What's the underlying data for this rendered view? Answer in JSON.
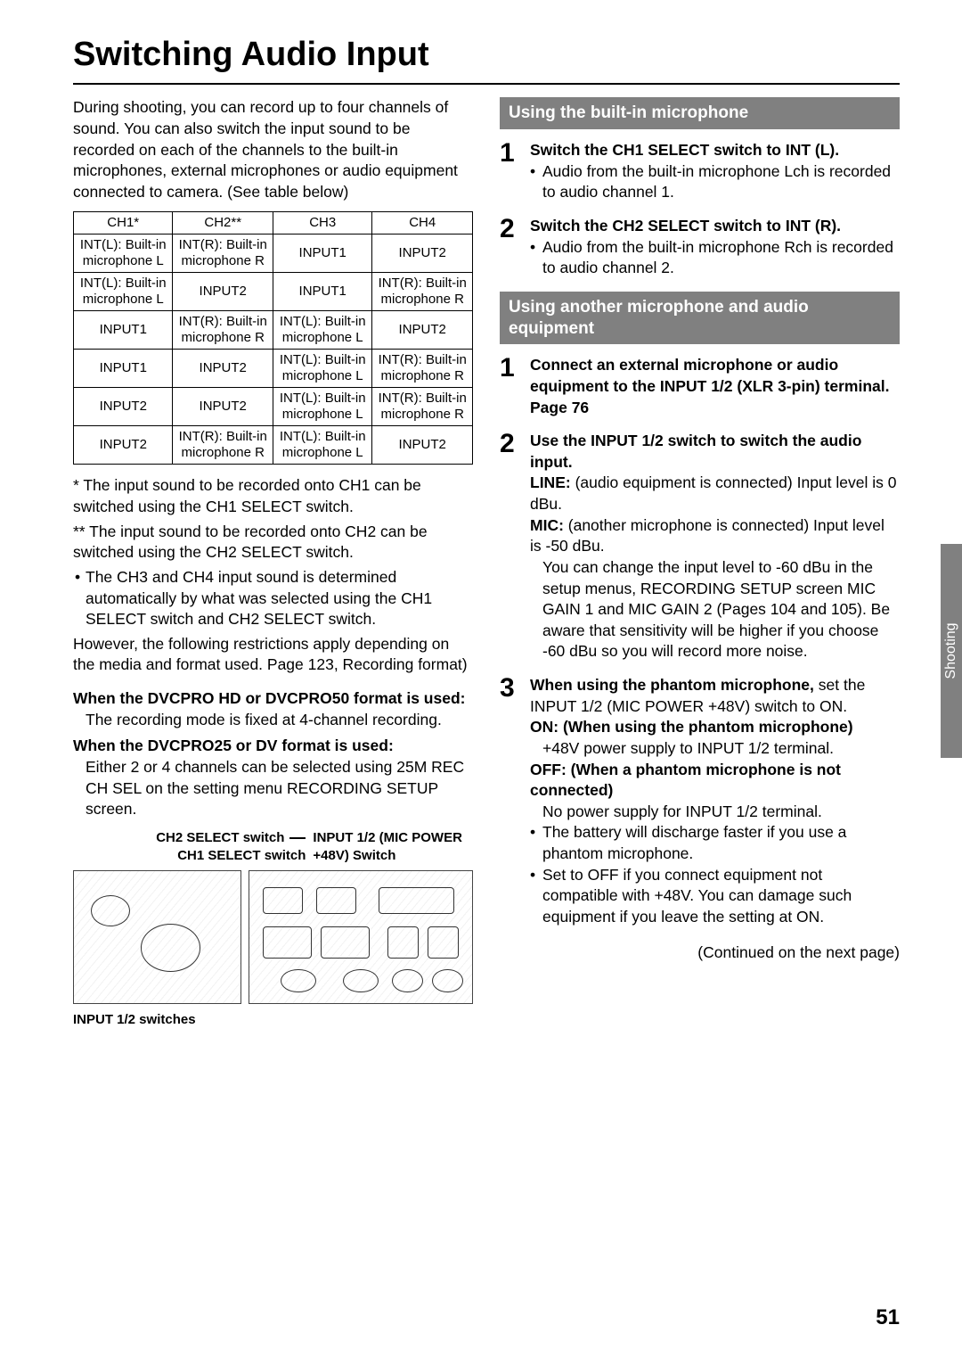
{
  "page": {
    "title": "Switching Audio Input",
    "side_tab": "Shooting",
    "page_number": "51",
    "continued": "(Continued on the next page)"
  },
  "left": {
    "intro": "During shooting, you can record up to four channels of sound. You can also switch the input sound to be recorded on each of the channels to the built-in microphones, external microphones or audio equipment connected to camera. (See table below)",
    "table": {
      "columns": [
        "CH1*",
        "CH2**",
        "CH3",
        "CH4"
      ],
      "rows": [
        [
          "INT(L): Built-in microphone L",
          "INT(R): Built-in microphone R",
          "INPUT1",
          "INPUT2"
        ],
        [
          "INT(L): Built-in microphone L",
          "INPUT2",
          "INPUT1",
          "INT(R): Built-in microphone R"
        ],
        [
          "INPUT1",
          "INT(R): Built-in microphone R",
          "INT(L): Built-in microphone L",
          "INPUT2"
        ],
        [
          "INPUT1",
          "INPUT2",
          "INT(L): Built-in microphone L",
          "INT(R): Built-in microphone R"
        ],
        [
          "INPUT2",
          "INPUT2",
          "INT(L): Built-in microphone L",
          "INT(R): Built-in microphone R"
        ],
        [
          "INPUT2",
          "INT(R): Built-in microphone R",
          "INT(L): Built-in microphone L",
          "INPUT2"
        ]
      ]
    },
    "notes": {
      "n1": "* The input sound to be recorded onto CH1 can be switched using the CH1 SELECT switch.",
      "n2": "** The input sound to be recorded onto CH2 can be switched using the CH2 SELECT switch.",
      "n3": "The CH3 and CH4 input sound is determined automatically by what was selected using the CH1 SELECT switch and CH2 SELECT switch.",
      "n4": "However, the following restrictions apply depending on the media and format used. Page 123, Recording format)"
    },
    "fmt1": {
      "heading": "When the DVCPRO HD or DVCPRO50 format is used:",
      "body": "The recording mode is fixed at 4-channel recording."
    },
    "fmt2": {
      "heading": "When the DVCPRO25 or DV format is used:",
      "body": "Either 2 or 4 channels can be selected using 25M REC CH SEL on the setting menu RECORDING SETUP screen."
    },
    "diagram": {
      "label_ch2": "CH2 SELECT switch",
      "label_ch1": "CH1 SELECT switch",
      "label_input12": "INPUT 1/2 (MIC POWER +48V) Switch",
      "input_switches": "INPUT 1/2 switches"
    }
  },
  "right": {
    "sec1": {
      "title": "Using the built-in microphone",
      "s1_lead": "Switch the CH1 SELECT switch to INT (L).",
      "s1_b1": "Audio from the built-in microphone Lch is recorded to audio channel 1.",
      "s2_lead": "Switch the CH2 SELECT switch to INT (R).",
      "s2_b1": "Audio from the built-in microphone Rch is recorded to audio channel 2."
    },
    "sec2": {
      "title": "Using another microphone and audio equipment",
      "s1_lead": "Connect an external microphone or audio equipment to the INPUT 1/2 (XLR 3-pin) terminal. Page 76",
      "s2_lead": "Use the INPUT 1/2 switch to switch the audio input.",
      "s2_line_label": "LINE:",
      "s2_line_body": " (audio equipment is connected) Input level is 0 dBu.",
      "s2_mic_label": "MIC:",
      "s2_mic_body": " (another microphone is connected) Input level is -50 dBu.",
      "s2_mic_extra": "You can change the input level to -60 dBu in the setup menus, RECORDING SETUP screen MIC GAIN 1 and MIC GAIN 2 (Pages 104 and 105). Be aware that sensitivity will be higher if you choose -60 dBu so you will record more noise.",
      "s3_lead": "When using the phantom microphone,",
      "s3_body1": "set the INPUT 1/2 (MIC POWER +48V) switch to ON.",
      "s3_on_label": "ON: (When using the phantom microphone)",
      "s3_on_body": "+48V power supply to INPUT 1/2 terminal.",
      "s3_off_label": "OFF: (When a phantom microphone is not connected)",
      "s3_off_body": "No power supply for INPUT 1/2 terminal.",
      "s3_b1": "The battery will discharge faster if you use a phantom microphone.",
      "s3_b2": "Set to OFF if you connect equipment not compatible with +48V. You can damage such equipment if you leave the setting at ON."
    }
  },
  "style": {
    "bar_bg": "#808080",
    "bar_fg": "#ffffff",
    "page_bg": "#ffffff",
    "text_color": "#000000",
    "title_fontsize": 38,
    "body_fontsize": 17.5,
    "table_fontsize": 15
  }
}
